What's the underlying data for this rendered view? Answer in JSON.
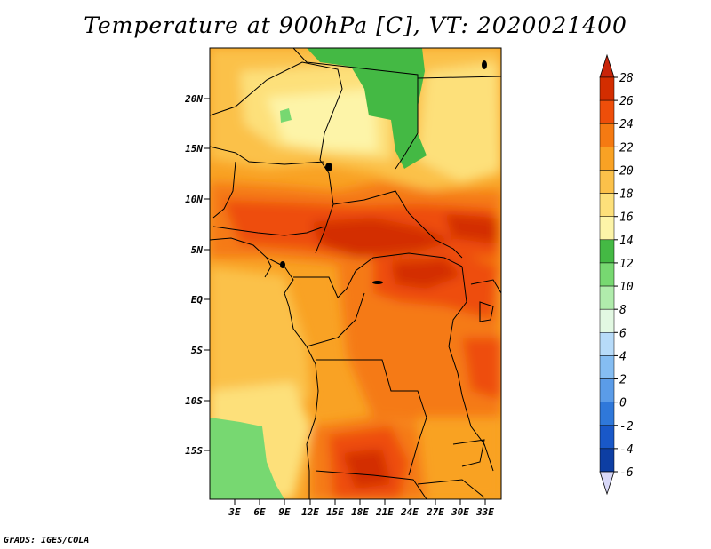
{
  "title": "Temperature at 900hPa [C], VT: 2020021400",
  "credit": "GrADS: IGES/COLA",
  "map": {
    "lon_ticks": [
      "3E",
      "6E",
      "9E",
      "12E",
      "15E",
      "18E",
      "21E",
      "24E",
      "27E",
      "30E",
      "33E"
    ],
    "lat_ticks": [
      "20N",
      "15N",
      "10N",
      "5N",
      "EQ",
      "5S",
      "10S",
      "15S"
    ]
  },
  "colorbar": {
    "levels": [
      "28",
      "26",
      "24",
      "22",
      "20",
      "18",
      "16",
      "14",
      "12",
      "10",
      "8",
      "6",
      "4",
      "2",
      "0",
      "-2",
      "-4",
      "-6"
    ],
    "colors": [
      "#d32d00",
      "#ee4e0a",
      "#f57a12",
      "#f9a224",
      "#fbc14a",
      "#fde07a",
      "#fdf4a8",
      "#44b944",
      "#77d871",
      "#b0ecac",
      "#e2f8e2",
      "#b7dbf9",
      "#85bdf2",
      "#5b9ce8",
      "#2f78da",
      "#1958c8",
      "#0d3ea3",
      "#081c6e"
    ],
    "top_color": "#c8240a",
    "bottom_color": "#d8d8f8"
  }
}
